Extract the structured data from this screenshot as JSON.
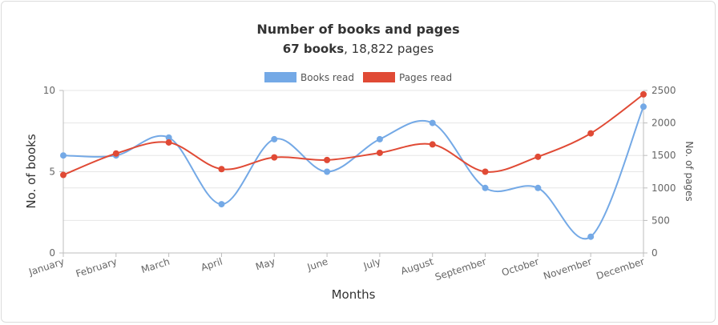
{
  "chart_data": {
    "type": "line",
    "title": "Number of books and pages",
    "subtitle_bold": "67 books",
    "subtitle_rest": ", 18,822 pages",
    "xlabel": "Months",
    "ylabel_left": "No. of books",
    "ylabel_right": "No. of pages",
    "legend_position": "top-center",
    "grid": true,
    "categories": [
      "January",
      "February",
      "March",
      "April",
      "May",
      "June",
      "July",
      "August",
      "September",
      "October",
      "November",
      "December"
    ],
    "y_left": {
      "min": 0,
      "max": 10,
      "ticks": [
        0,
        5,
        10
      ]
    },
    "y_right": {
      "min": 0,
      "max": 2500,
      "ticks": [
        0,
        500,
        1000,
        1500,
        2000,
        2500
      ]
    },
    "series": [
      {
        "name": "Books read",
        "axis": "left",
        "color": "#74a9e6",
        "values": [
          6,
          6,
          7.1,
          3,
          7,
          5,
          7,
          8,
          4,
          4,
          1,
          9
        ]
      },
      {
        "name": "Pages read",
        "axis": "right",
        "color": "#e04a35",
        "values": [
          1200,
          1530,
          1700,
          1290,
          1470,
          1430,
          1540,
          1670,
          1250,
          1480,
          1840,
          2440
        ]
      }
    ]
  }
}
